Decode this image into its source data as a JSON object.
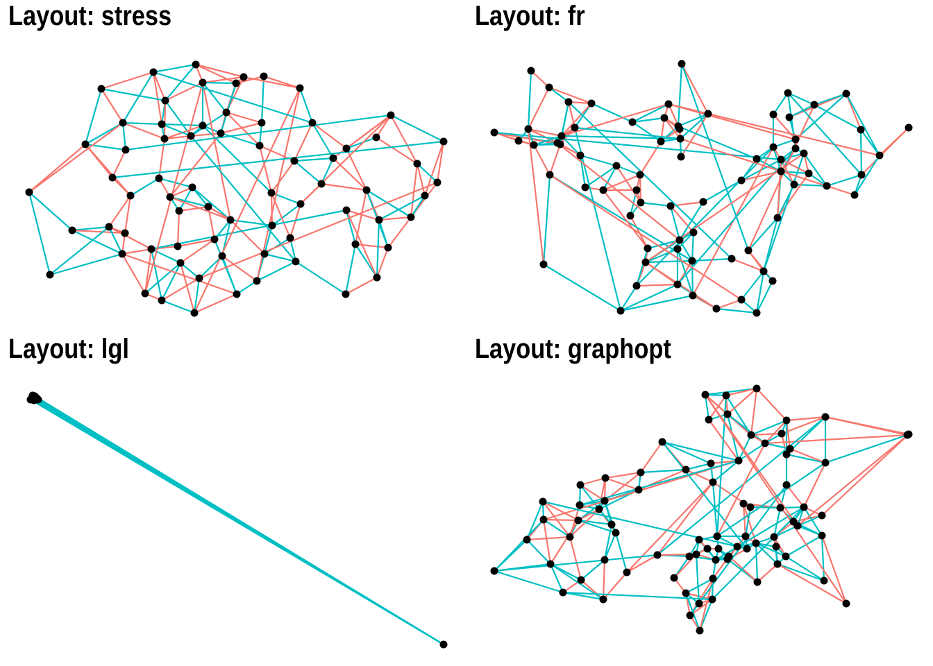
{
  "colors": {
    "edge_red": "#F8766D",
    "edge_teal": "#00BFC4",
    "node": "#000000",
    "background": "#FFFFFF"
  },
  "panels": [
    {
      "title": "Layout: stress"
    },
    {
      "title": "Layout: fr"
    },
    {
      "title": "Layout: lgl"
    },
    {
      "title": "Layout: graphopt"
    }
  ]
}
